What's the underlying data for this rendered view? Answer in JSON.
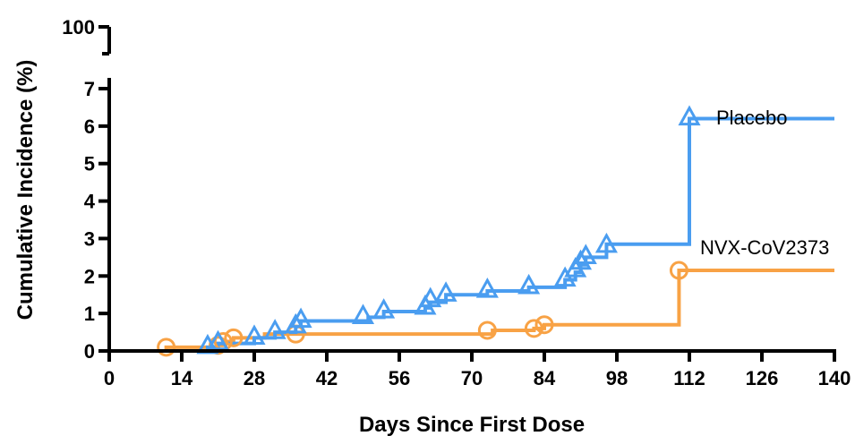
{
  "chart_data": {
    "type": "line",
    "subtype": "step",
    "xlabel": "Days Since First Dose",
    "ylabel": "Cumulative Incidence (%)",
    "xlim": [
      0,
      140
    ],
    "x_ticks": [
      0,
      14,
      28,
      42,
      56,
      70,
      84,
      98,
      112,
      126,
      140
    ],
    "ylim": [
      0,
      7
    ],
    "y_ticks": [
      0,
      1,
      2,
      3,
      4,
      5,
      6,
      7
    ],
    "y_break_tick": 100,
    "grid": false,
    "series": [
      {
        "name": "Placebo",
        "color": "#4a9df0",
        "marker": "triangle",
        "steps": [
          [
            0,
            0
          ],
          [
            19,
            0.1
          ],
          [
            21,
            0.2
          ],
          [
            28,
            0.35
          ],
          [
            32,
            0.5
          ],
          [
            36,
            0.65
          ],
          [
            37,
            0.8
          ],
          [
            50,
            0.9
          ],
          [
            53,
            1.05
          ],
          [
            61,
            1.15
          ],
          [
            62,
            1.3
          ],
          [
            65,
            1.5
          ],
          [
            73,
            1.6
          ],
          [
            81,
            1.7
          ],
          [
            88,
            1.9
          ],
          [
            90,
            2.1
          ],
          [
            91,
            2.3
          ],
          [
            92,
            2.5
          ],
          [
            96,
            2.85
          ],
          [
            112,
            6.2
          ],
          [
            140,
            6.2
          ]
        ],
        "markers": [
          [
            19,
            0.1
          ],
          [
            21,
            0.2
          ],
          [
            28,
            0.35
          ],
          [
            32,
            0.5
          ],
          [
            36,
            0.65
          ],
          [
            37,
            0.8
          ],
          [
            49,
            0.9
          ],
          [
            53,
            1.05
          ],
          [
            61,
            1.15
          ],
          [
            62,
            1.35
          ],
          [
            65,
            1.5
          ],
          [
            73,
            1.6
          ],
          [
            81,
            1.7
          ],
          [
            88,
            1.9
          ],
          [
            90,
            2.15
          ],
          [
            91,
            2.35
          ],
          [
            92,
            2.5
          ],
          [
            96,
            2.8
          ],
          [
            112,
            6.2
          ]
        ]
      },
      {
        "name": "NVX-CoV2373",
        "color": "#f8a245",
        "marker": "circle",
        "steps": [
          [
            0,
            0
          ],
          [
            11,
            0.1
          ],
          [
            21,
            0.15
          ],
          [
            22,
            0.25
          ],
          [
            24,
            0.35
          ],
          [
            30,
            0.45
          ],
          [
            36,
            0.45
          ],
          [
            74,
            0.55
          ],
          [
            82,
            0.6
          ],
          [
            84,
            0.7
          ],
          [
            110,
            2.15
          ],
          [
            140,
            2.15
          ]
        ],
        "markers": [
          [
            11,
            0.1
          ],
          [
            21,
            0.15
          ],
          [
            22,
            0.25
          ],
          [
            24,
            0.35
          ],
          [
            36,
            0.45
          ],
          [
            73,
            0.55
          ],
          [
            82,
            0.6
          ],
          [
            84,
            0.7
          ],
          [
            110,
            2.15
          ]
        ]
      }
    ]
  }
}
